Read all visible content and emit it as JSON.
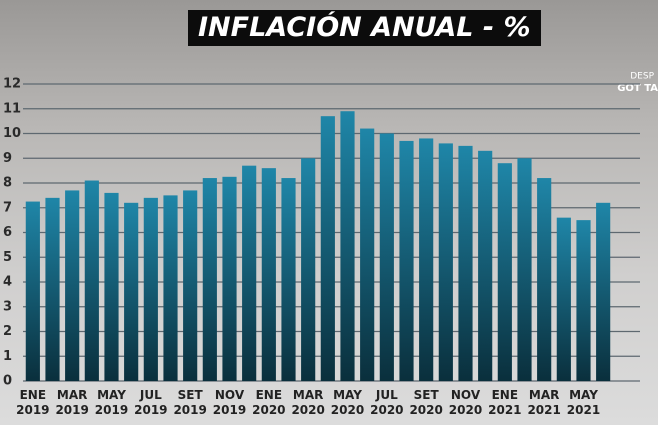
{
  "chart_data": {
    "type": "bar",
    "title": "INFLACIÓN ANUAL - %",
    "watermark": [
      "DESP",
      "GOT TA"
    ],
    "categories": [
      "ENE 2019",
      null,
      "MAR 2019",
      null,
      "MAY 2019",
      null,
      "JUL 2019",
      null,
      "SET 2019",
      null,
      "NOV 2019",
      null,
      "ENE 2020",
      null,
      "MAR 2020",
      null,
      "MAY 2020",
      null,
      "JUL 2020",
      null,
      "SET 2020",
      null,
      "NOV 2020",
      null,
      "ENE 2021",
      null,
      "MAR 2021",
      null,
      "MAY 2021",
      null
    ],
    "values": [
      7.25,
      7.4,
      7.7,
      8.1,
      7.6,
      7.2,
      7.4,
      7.5,
      7.7,
      8.2,
      8.25,
      8.7,
      8.6,
      8.2,
      9.0,
      10.7,
      10.9,
      10.2,
      10.0,
      9.7,
      9.8,
      9.6,
      9.5,
      9.3,
      8.8,
      9.0,
      8.2,
      6.6,
      6.5,
      7.2
    ],
    "color": "#1f86a8",
    "ylim": [
      0,
      12
    ],
    "yticks": [
      0,
      1,
      2,
      3,
      4,
      5,
      6,
      7,
      8,
      9,
      10,
      11,
      12
    ],
    "grid": true
  }
}
